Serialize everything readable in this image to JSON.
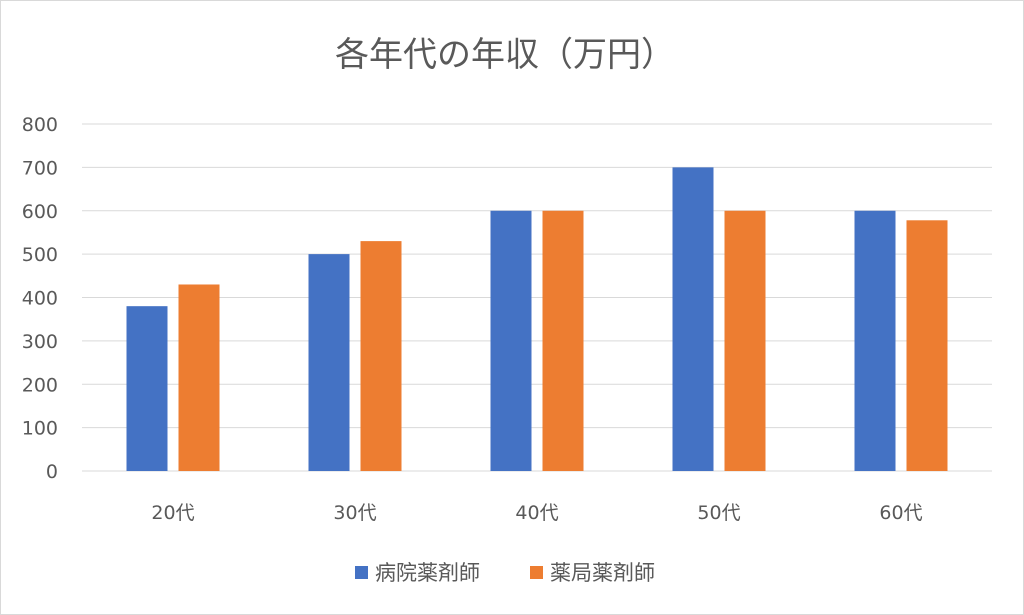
{
  "chart_data": {
    "type": "bar",
    "title": "各年代の年収（万円）",
    "xlabel": "",
    "ylabel": "",
    "categories": [
      "20代",
      "30代",
      "40代",
      "50代",
      "60代"
    ],
    "series": [
      {
        "name": "病院薬剤師",
        "values": [
          380,
          500,
          600,
          700,
          600
        ],
        "color": "#4472C4"
      },
      {
        "name": "薬局薬剤師",
        "values": [
          430,
          530,
          600,
          600,
          578
        ],
        "color": "#ED7D31"
      }
    ],
    "ylim": [
      0,
      800
    ],
    "yticks": [
      0,
      100,
      200,
      300,
      400,
      500,
      600,
      700,
      800
    ],
    "grid": true,
    "legend_position": "bottom"
  }
}
